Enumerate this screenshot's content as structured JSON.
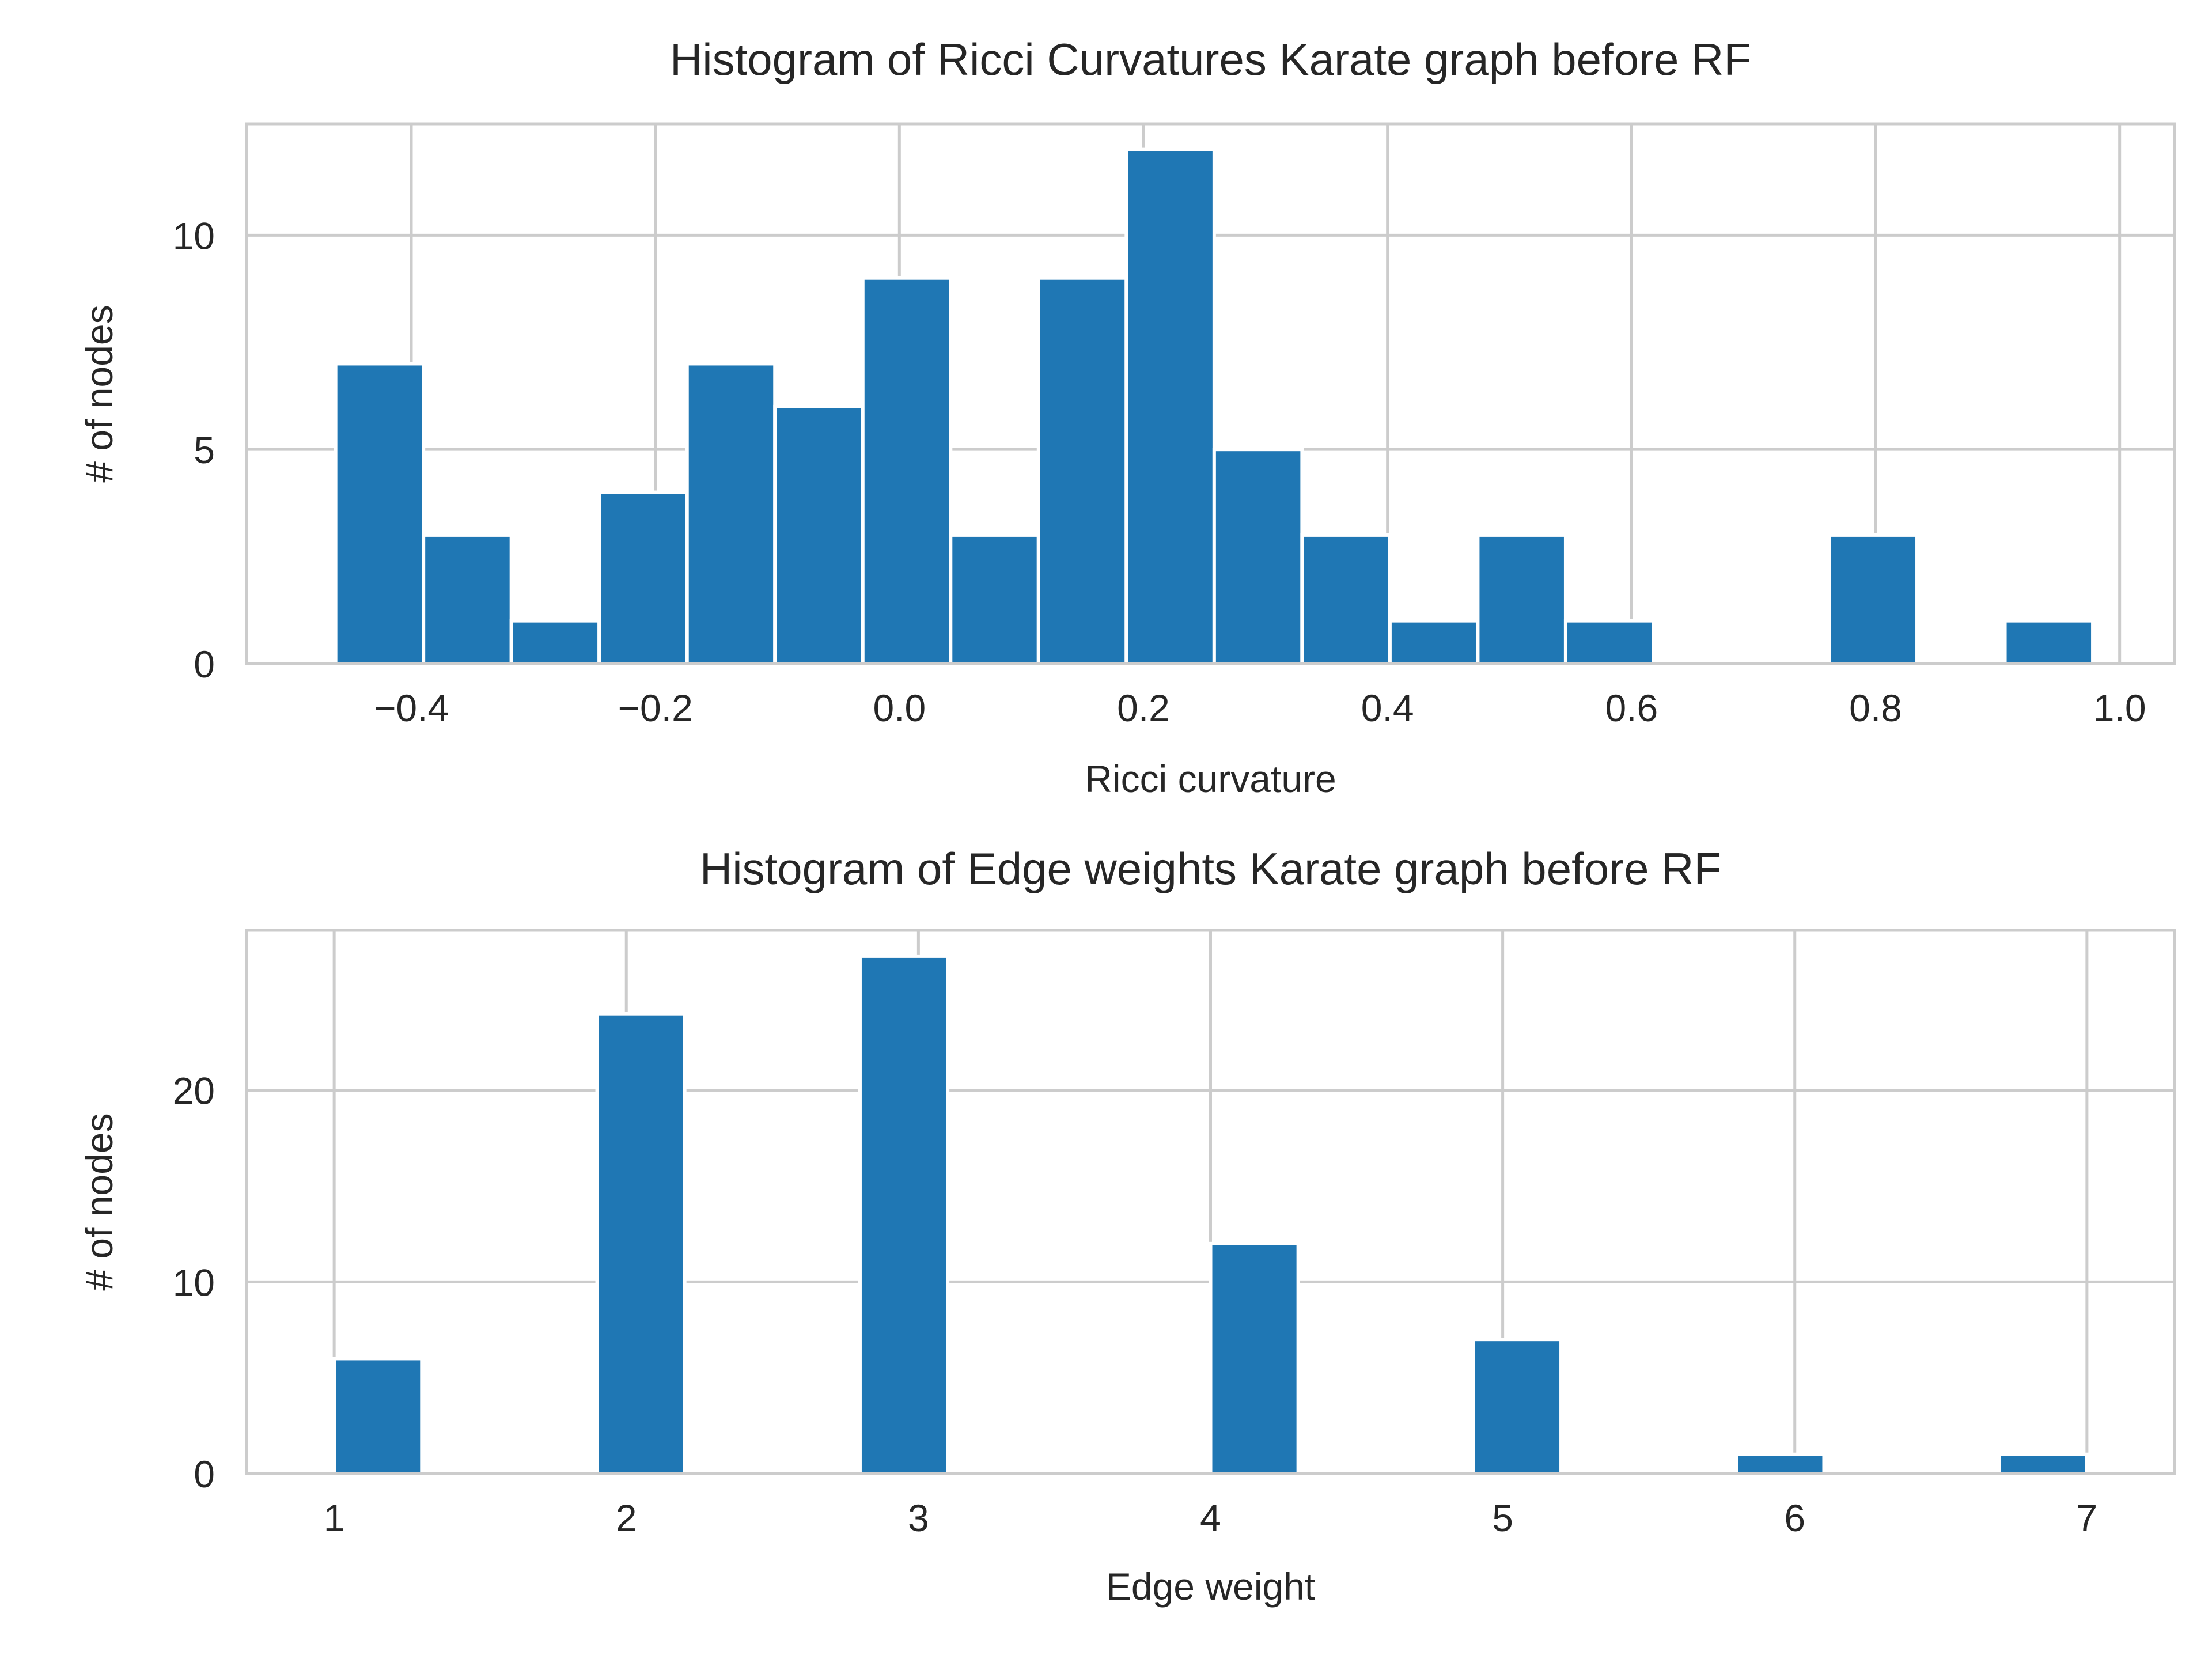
{
  "chart_data": [
    {
      "type": "bar",
      "title": "Histogram of Ricci Curvatures Karate graph before RF",
      "xlabel": "Ricci curvature",
      "ylabel": "# of nodes",
      "xlim": [
        -0.535,
        1.045
      ],
      "ylim": [
        0,
        12.6
      ],
      "grid": true,
      "xticks": [
        -0.4,
        -0.2,
        0.0,
        0.2,
        0.4,
        0.6,
        0.8,
        1.0
      ],
      "xtick_labels": [
        "−0.4",
        "−0.2",
        "0.0",
        "0.2",
        "0.4",
        "0.6",
        "0.8",
        "1.0"
      ],
      "yticks": [
        0,
        5,
        10
      ],
      "ytick_labels": [
        "0",
        "5",
        "10"
      ],
      "bin_edges": [
        -0.462,
        -0.39,
        -0.318,
        -0.246,
        -0.174,
        -0.102,
        -0.03,
        0.042,
        0.114,
        0.186,
        0.258,
        0.33,
        0.402,
        0.474,
        0.546,
        0.618,
        0.69,
        0.762,
        0.834,
        0.906,
        0.978
      ],
      "values": [
        7,
        3,
        1,
        4,
        7,
        6,
        9,
        3,
        9,
        12,
        5,
        3,
        1,
        3,
        1,
        0,
        0,
        3,
        0,
        1
      ]
    },
    {
      "type": "bar",
      "title": "Histogram of Edge weights Karate graph before RF",
      "xlabel": "Edge weight",
      "ylabel": "# of nodes",
      "xlim": [
        0.7,
        7.3
      ],
      "ylim": [
        0,
        28.35
      ],
      "grid": true,
      "xticks": [
        1,
        2,
        3,
        4,
        5,
        6,
        7
      ],
      "xtick_labels": [
        "1",
        "2",
        "3",
        "4",
        "5",
        "6",
        "7"
      ],
      "yticks": [
        0,
        10,
        20
      ],
      "ytick_labels": [
        "0",
        "10",
        "20"
      ],
      "bin_edges": [
        1.0,
        1.3,
        1.6,
        1.9,
        2.2,
        2.5,
        2.8,
        3.1,
        3.4,
        3.7,
        4.0,
        4.3,
        4.6,
        4.9,
        5.2,
        5.5,
        5.8,
        6.1,
        6.4,
        6.7,
        7.0
      ],
      "values": [
        6,
        0,
        0,
        24,
        0,
        0,
        27,
        0,
        0,
        0,
        12,
        0,
        0,
        7,
        0,
        0,
        1,
        0,
        0,
        1
      ]
    }
  ]
}
